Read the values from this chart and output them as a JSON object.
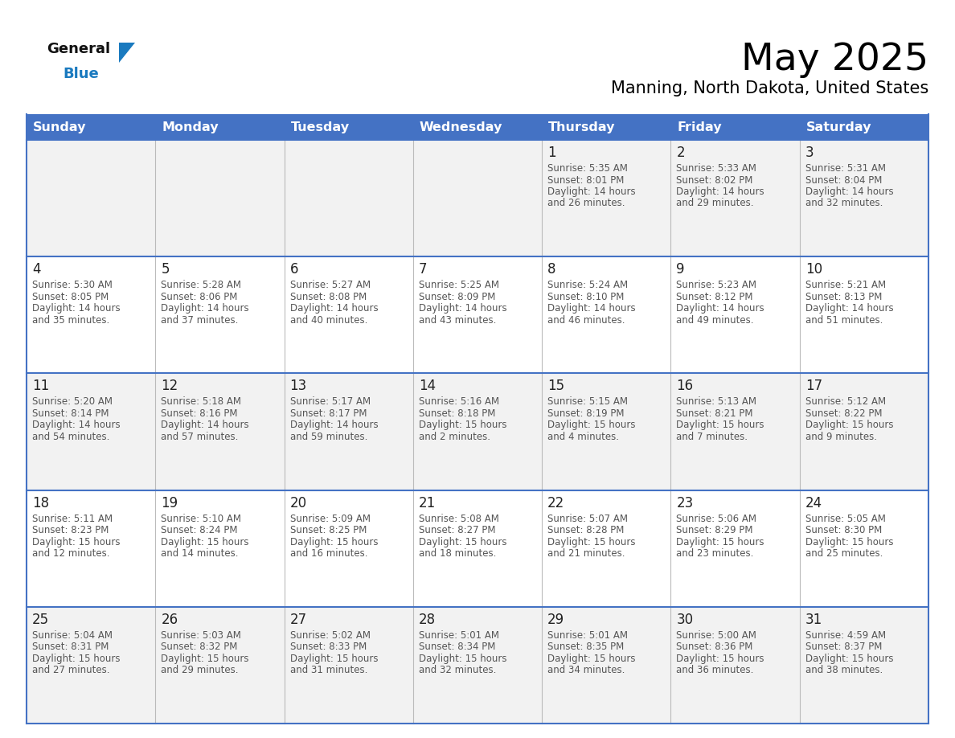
{
  "title": "May 2025",
  "subtitle": "Manning, North Dakota, United States",
  "header_bg": "#4472C4",
  "header_text_color": "#FFFFFF",
  "days_of_week": [
    "Sunday",
    "Monday",
    "Tuesday",
    "Wednesday",
    "Thursday",
    "Friday",
    "Saturday"
  ],
  "row_bg_light": "#F2F2F2",
  "row_bg_white": "#FFFFFF",
  "cell_text_color": "#555555",
  "day_num_color": "#222222",
  "border_color": "#4472C4",
  "separator_color": "#BBBBBB",
  "calendar_data": [
    [
      null,
      null,
      null,
      null,
      {
        "day": 1,
        "sunrise": "5:35 AM",
        "sunset": "8:01 PM",
        "daylight": "14 hours",
        "daylight2": "and 26 minutes."
      },
      {
        "day": 2,
        "sunrise": "5:33 AM",
        "sunset": "8:02 PM",
        "daylight": "14 hours",
        "daylight2": "and 29 minutes."
      },
      {
        "day": 3,
        "sunrise": "5:31 AM",
        "sunset": "8:04 PM",
        "daylight": "14 hours",
        "daylight2": "and 32 minutes."
      }
    ],
    [
      {
        "day": 4,
        "sunrise": "5:30 AM",
        "sunset": "8:05 PM",
        "daylight": "14 hours",
        "daylight2": "and 35 minutes."
      },
      {
        "day": 5,
        "sunrise": "5:28 AM",
        "sunset": "8:06 PM",
        "daylight": "14 hours",
        "daylight2": "and 37 minutes."
      },
      {
        "day": 6,
        "sunrise": "5:27 AM",
        "sunset": "8:08 PM",
        "daylight": "14 hours",
        "daylight2": "and 40 minutes."
      },
      {
        "day": 7,
        "sunrise": "5:25 AM",
        "sunset": "8:09 PM",
        "daylight": "14 hours",
        "daylight2": "and 43 minutes."
      },
      {
        "day": 8,
        "sunrise": "5:24 AM",
        "sunset": "8:10 PM",
        "daylight": "14 hours",
        "daylight2": "and 46 minutes."
      },
      {
        "day": 9,
        "sunrise": "5:23 AM",
        "sunset": "8:12 PM",
        "daylight": "14 hours",
        "daylight2": "and 49 minutes."
      },
      {
        "day": 10,
        "sunrise": "5:21 AM",
        "sunset": "8:13 PM",
        "daylight": "14 hours",
        "daylight2": "and 51 minutes."
      }
    ],
    [
      {
        "day": 11,
        "sunrise": "5:20 AM",
        "sunset": "8:14 PM",
        "daylight": "14 hours",
        "daylight2": "and 54 minutes."
      },
      {
        "day": 12,
        "sunrise": "5:18 AM",
        "sunset": "8:16 PM",
        "daylight": "14 hours",
        "daylight2": "and 57 minutes."
      },
      {
        "day": 13,
        "sunrise": "5:17 AM",
        "sunset": "8:17 PM",
        "daylight": "14 hours",
        "daylight2": "and 59 minutes."
      },
      {
        "day": 14,
        "sunrise": "5:16 AM",
        "sunset": "8:18 PM",
        "daylight": "15 hours",
        "daylight2": "and 2 minutes."
      },
      {
        "day": 15,
        "sunrise": "5:15 AM",
        "sunset": "8:19 PM",
        "daylight": "15 hours",
        "daylight2": "and 4 minutes."
      },
      {
        "day": 16,
        "sunrise": "5:13 AM",
        "sunset": "8:21 PM",
        "daylight": "15 hours",
        "daylight2": "and 7 minutes."
      },
      {
        "day": 17,
        "sunrise": "5:12 AM",
        "sunset": "8:22 PM",
        "daylight": "15 hours",
        "daylight2": "and 9 minutes."
      }
    ],
    [
      {
        "day": 18,
        "sunrise": "5:11 AM",
        "sunset": "8:23 PM",
        "daylight": "15 hours",
        "daylight2": "and 12 minutes."
      },
      {
        "day": 19,
        "sunrise": "5:10 AM",
        "sunset": "8:24 PM",
        "daylight": "15 hours",
        "daylight2": "and 14 minutes."
      },
      {
        "day": 20,
        "sunrise": "5:09 AM",
        "sunset": "8:25 PM",
        "daylight": "15 hours",
        "daylight2": "and 16 minutes."
      },
      {
        "day": 21,
        "sunrise": "5:08 AM",
        "sunset": "8:27 PM",
        "daylight": "15 hours",
        "daylight2": "and 18 minutes."
      },
      {
        "day": 22,
        "sunrise": "5:07 AM",
        "sunset": "8:28 PM",
        "daylight": "15 hours",
        "daylight2": "and 21 minutes."
      },
      {
        "day": 23,
        "sunrise": "5:06 AM",
        "sunset": "8:29 PM",
        "daylight": "15 hours",
        "daylight2": "and 23 minutes."
      },
      {
        "day": 24,
        "sunrise": "5:05 AM",
        "sunset": "8:30 PM",
        "daylight": "15 hours",
        "daylight2": "and 25 minutes."
      }
    ],
    [
      {
        "day": 25,
        "sunrise": "5:04 AM",
        "sunset": "8:31 PM",
        "daylight": "15 hours",
        "daylight2": "and 27 minutes."
      },
      {
        "day": 26,
        "sunrise": "5:03 AM",
        "sunset": "8:32 PM",
        "daylight": "15 hours",
        "daylight2": "and 29 minutes."
      },
      {
        "day": 27,
        "sunrise": "5:02 AM",
        "sunset": "8:33 PM",
        "daylight": "15 hours",
        "daylight2": "and 31 minutes."
      },
      {
        "day": 28,
        "sunrise": "5:01 AM",
        "sunset": "8:34 PM",
        "daylight": "15 hours",
        "daylight2": "and 32 minutes."
      },
      {
        "day": 29,
        "sunrise": "5:01 AM",
        "sunset": "8:35 PM",
        "daylight": "15 hours",
        "daylight2": "and 34 minutes."
      },
      {
        "day": 30,
        "sunrise": "5:00 AM",
        "sunset": "8:36 PM",
        "daylight": "15 hours",
        "daylight2": "and 36 minutes."
      },
      {
        "day": 31,
        "sunrise": "4:59 AM",
        "sunset": "8:37 PM",
        "daylight": "15 hours",
        "daylight2": "and 38 minutes."
      }
    ]
  ],
  "logo_text_general": "General",
  "logo_text_blue": "Blue",
  "logo_color_general": "#111111",
  "logo_color_blue": "#1a7abf",
  "logo_triangle_color": "#1a7abf",
  "title_fontsize": 34,
  "subtitle_fontsize": 15,
  "header_fontsize": 11.5,
  "day_num_fontsize": 12,
  "cell_fontsize": 8.5
}
